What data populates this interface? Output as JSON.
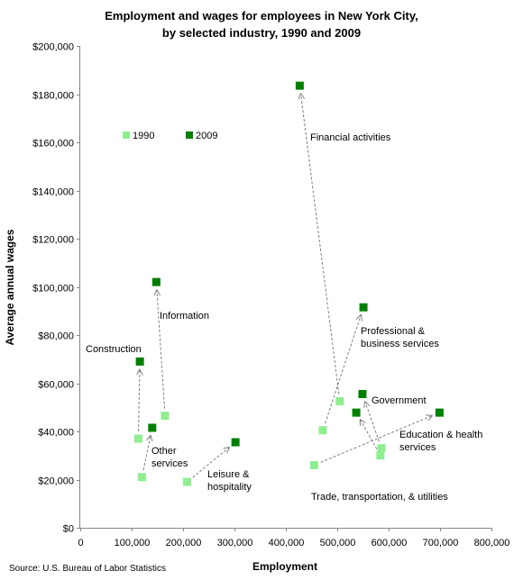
{
  "chart_data": {
    "type": "scatter",
    "title_lines": [
      "Employment and wages for employees in New York City,",
      "by selected industry, 1990 and 2009"
    ],
    "xlabel": "Employment",
    "ylabel": "Average annual wages",
    "xlim": [
      0,
      800000
    ],
    "ylim": [
      0,
      200000
    ],
    "x_ticks": [
      {
        "value": 0,
        "label": "0"
      },
      {
        "value": 100000,
        "label": "100,000"
      },
      {
        "value": 200000,
        "label": "200,000"
      },
      {
        "value": 300000,
        "label": "300,000"
      },
      {
        "value": 400000,
        "label": "400,000"
      },
      {
        "value": 500000,
        "label": "500,000"
      },
      {
        "value": 600000,
        "label": "600,000"
      },
      {
        "value": 700000,
        "label": "700,000"
      },
      {
        "value": 800000,
        "label": "800,000"
      }
    ],
    "y_ticks": [
      {
        "value": 0,
        "label": "$0"
      },
      {
        "value": 20000,
        "label": "$20,000"
      },
      {
        "value": 40000,
        "label": "$40,000"
      },
      {
        "value": 60000,
        "label": "$60,000"
      },
      {
        "value": 80000,
        "label": "$80,000"
      },
      {
        "value": 100000,
        "label": "$100,000"
      },
      {
        "value": 120000,
        "label": "$120,000"
      },
      {
        "value": 140000,
        "label": "$140,000"
      },
      {
        "value": 160000,
        "label": "$160,000"
      },
      {
        "value": 180000,
        "label": "$180,000"
      },
      {
        "value": 200000,
        "label": "$200,000"
      }
    ],
    "grid": false,
    "legend_position": "upper-left",
    "series": [
      {
        "name": "1990",
        "color": "#90ee90"
      },
      {
        "name": "2009",
        "color": "#008000"
      }
    ],
    "industries": [
      {
        "label_lines": [
          "Financial activities"
        ],
        "p1990": [
          505000,
          52500
        ],
        "p2009": [
          427000,
          183500
        ]
      },
      {
        "label_lines": [
          "Professional &",
          "business services"
        ],
        "p1990": [
          472000,
          40500
        ],
        "p2009": [
          551000,
          91500
        ]
      },
      {
        "label_lines": [
          "Government"
        ],
        "p1990": [
          586000,
          33000
        ],
        "p2009": [
          549000,
          55500
        ]
      },
      {
        "label_lines": [
          "Education & health",
          "services"
        ],
        "p1990": [
          455000,
          26000
        ],
        "p2009": [
          699000,
          47800
        ]
      },
      {
        "label_lines": [
          "Trade, transportation, & utilities"
        ],
        "p1990": [
          584000,
          30000
        ],
        "p2009": [
          537000,
          47800
        ]
      },
      {
        "label_lines": [
          "Information"
        ],
        "p1990": [
          165000,
          46500
        ],
        "p2009": [
          148000,
          102000
        ]
      },
      {
        "label_lines": [
          "Construction"
        ],
        "p1990": [
          113000,
          37000
        ],
        "p2009": [
          116000,
          69000
        ]
      },
      {
        "label_lines": [
          "Other",
          "services"
        ],
        "p1990": [
          120000,
          21000
        ],
        "p2009": [
          140000,
          41500
        ]
      },
      {
        "label_lines": [
          "Leisure &",
          "hospitality"
        ],
        "p1990": [
          208000,
          19000
        ],
        "p2009": [
          302000,
          35500
        ]
      }
    ],
    "source": "Source: U.S. Bureau of Labor Statistics"
  }
}
